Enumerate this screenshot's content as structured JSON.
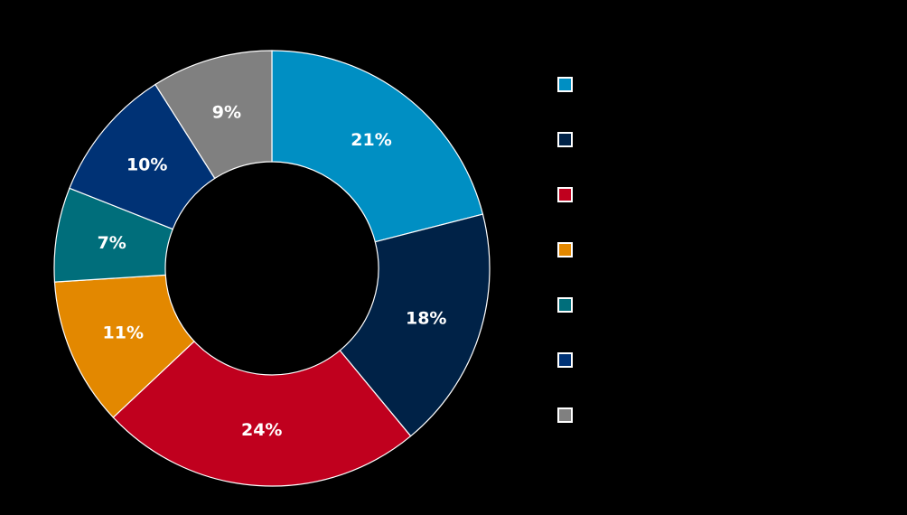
{
  "chart_data": {
    "type": "pie",
    "variant": "donut",
    "title": "",
    "start_angle_deg": 0,
    "direction": "clockwise",
    "center": [
      301,
      297
    ],
    "outer_radius": 241,
    "inner_radius": 118,
    "series": [
      {
        "name": "",
        "value": 21,
        "label": "21%",
        "color": "#008FC3"
      },
      {
        "name": "",
        "value": 18,
        "label": "18%",
        "color": "#002247"
      },
      {
        "name": "",
        "value": 24,
        "label": "24%",
        "color": "#C0001E"
      },
      {
        "name": "",
        "value": 11,
        "label": "11%",
        "color": "#E38800"
      },
      {
        "name": "",
        "value": 7,
        "label": "7%",
        "color": "#006E7B"
      },
      {
        "name": "",
        "value": 10,
        "label": "10%",
        "color": "#003275"
      },
      {
        "name": "",
        "value": 9,
        "label": "9%",
        "color": "#808080"
      }
    ],
    "legend": {
      "position": "right",
      "entries": [
        "",
        "",
        "",
        "",
        "",
        "",
        ""
      ],
      "colors": [
        "#008FC3",
        "#002247",
        "#C0001E",
        "#E38800",
        "#006E7B",
        "#003275",
        "#808080"
      ]
    }
  }
}
